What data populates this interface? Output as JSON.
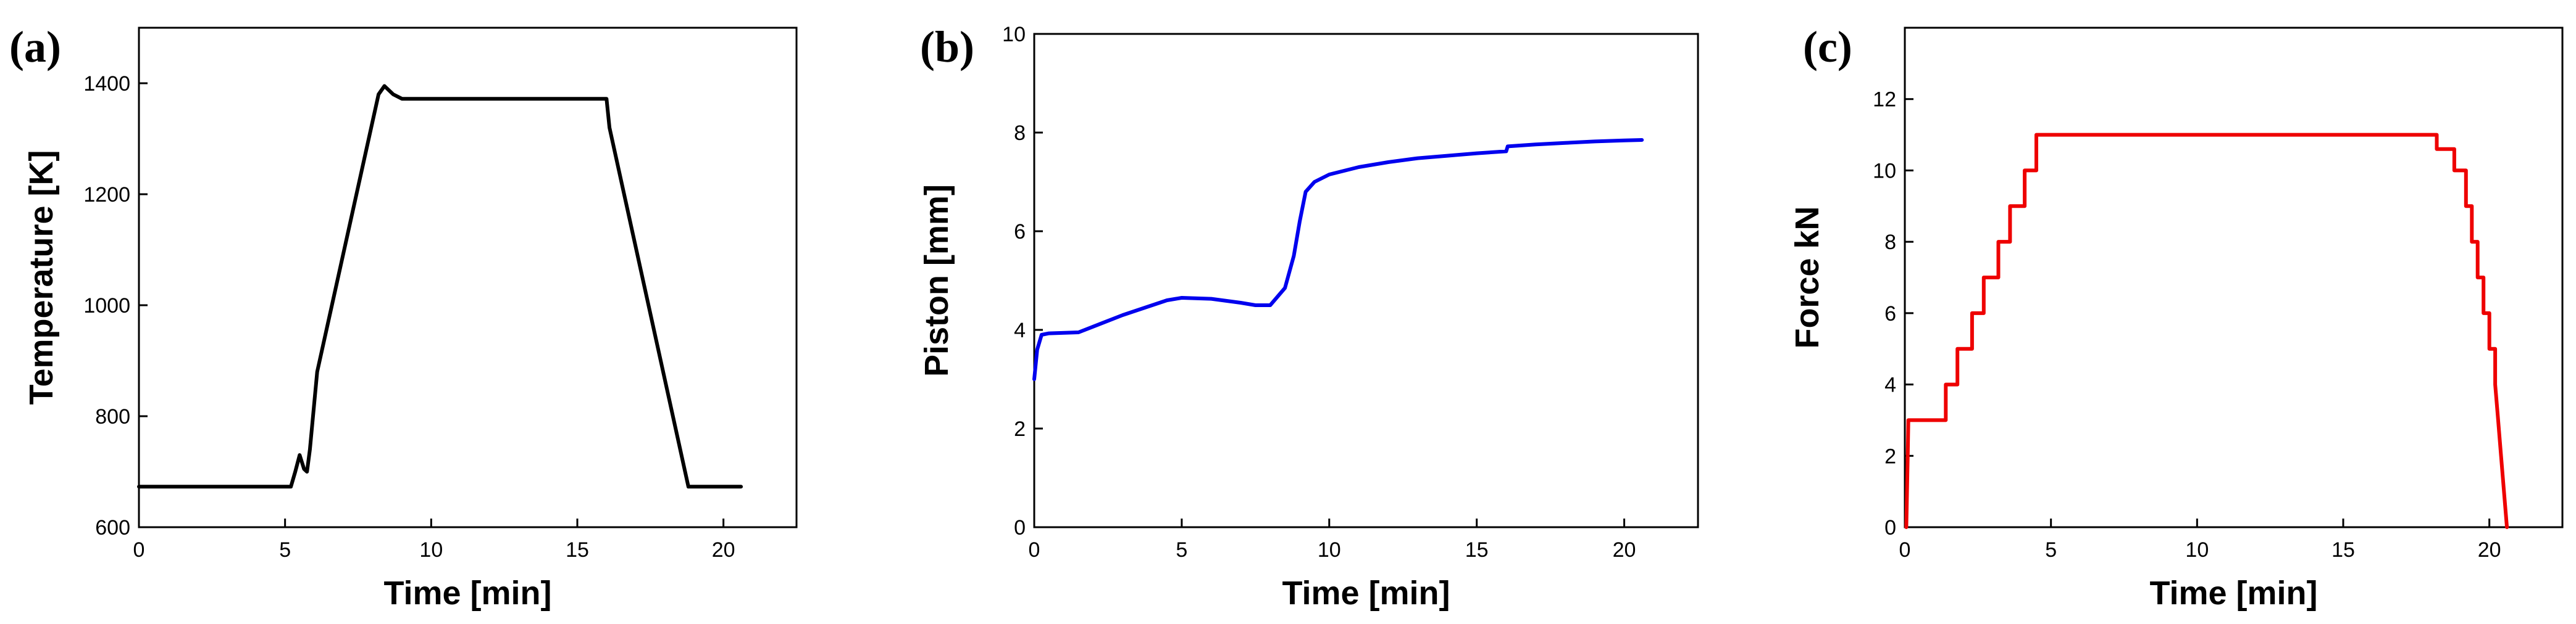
{
  "chart_data": [
    {
      "panel_label": "(a)",
      "type": "line",
      "xlabel": "Time [min]",
      "ylabel": "Temperature [K]",
      "xlim": [
        0,
        22.5
      ],
      "ylim": [
        600,
        1500
      ],
      "xticks": [
        0,
        5,
        10,
        15,
        20
      ],
      "yticks": [
        600,
        800,
        1000,
        1200,
        1400
      ],
      "grid": false,
      "series": [
        {
          "color": "#000000",
          "x": [
            0,
            5.2,
            5.35,
            5.5,
            5.65,
            5.75,
            5.85,
            6.1,
            8.2,
            8.4,
            8.7,
            9.0,
            12,
            16.0,
            16.1,
            18.8,
            20.6
          ],
          "y": [
            673,
            673,
            700,
            730,
            705,
            700,
            740,
            880,
            1380,
            1395,
            1380,
            1372,
            1372,
            1372,
            1320,
            673,
            673
          ]
        }
      ]
    },
    {
      "panel_label": "(b)",
      "type": "line",
      "xlabel": "Time [min]",
      "ylabel": "Piston [mm]",
      "xlim": [
        0,
        22.5
      ],
      "ylim": [
        0,
        10
      ],
      "xticks": [
        0,
        5,
        10,
        15,
        20
      ],
      "yticks": [
        0,
        2,
        4,
        6,
        8,
        10
      ],
      "grid": false,
      "series": [
        {
          "color": "#0000ee",
          "x": [
            0,
            0.1,
            0.25,
            0.5,
            1.5,
            3.0,
            4.5,
            5.0,
            6.0,
            7.0,
            7.5,
            8.0,
            8.5,
            8.8,
            9.0,
            9.2,
            9.5,
            10.0,
            11,
            12,
            13,
            14,
            15,
            16.0,
            16.05,
            17,
            18,
            19,
            20,
            20.6
          ],
          "y": [
            3.0,
            3.6,
            3.9,
            3.93,
            3.95,
            4.3,
            4.6,
            4.65,
            4.63,
            4.55,
            4.5,
            4.5,
            4.85,
            5.5,
            6.2,
            6.8,
            7.0,
            7.15,
            7.3,
            7.4,
            7.48,
            7.53,
            7.58,
            7.62,
            7.72,
            7.76,
            7.79,
            7.82,
            7.84,
            7.85
          ]
        }
      ]
    },
    {
      "panel_label": "(c)",
      "type": "line",
      "xlabel": "Time [min]",
      "ylabel": "Force kN",
      "xlim": [
        0,
        22.5
      ],
      "ylim": [
        0,
        14
      ],
      "xticks": [
        0,
        5,
        10,
        15,
        20
      ],
      "yticks": [
        0,
        2,
        4,
        6,
        8,
        10,
        12
      ],
      "grid": false,
      "series": [
        {
          "color": "#ee0000",
          "x": [
            0.05,
            0.1,
            0.12,
            1.4,
            1.4,
            1.8,
            1.8,
            2.3,
            2.3,
            2.7,
            2.7,
            3.2,
            3.2,
            3.6,
            3.6,
            4.1,
            4.1,
            4.5,
            4.5,
            18.2,
            18.2,
            18.8,
            18.8,
            19.2,
            19.2,
            19.4,
            19.4,
            19.6,
            19.6,
            19.8,
            19.8,
            20.0,
            20.0,
            20.2,
            20.2,
            20.3,
            20.4,
            20.6
          ],
          "y": [
            0,
            2.0,
            3.0,
            3.0,
            4.0,
            4.0,
            5.0,
            5.0,
            6.0,
            6.0,
            7.0,
            7.0,
            8.0,
            8.0,
            9.0,
            9.0,
            10.0,
            10.0,
            11.0,
            11.0,
            10.6,
            10.6,
            10.0,
            10.0,
            9.0,
            9.0,
            8.0,
            8.0,
            7.0,
            7.0,
            6.0,
            6.0,
            5.0,
            5.0,
            4.0,
            3.0,
            2.0,
            0
          ]
        }
      ]
    }
  ]
}
